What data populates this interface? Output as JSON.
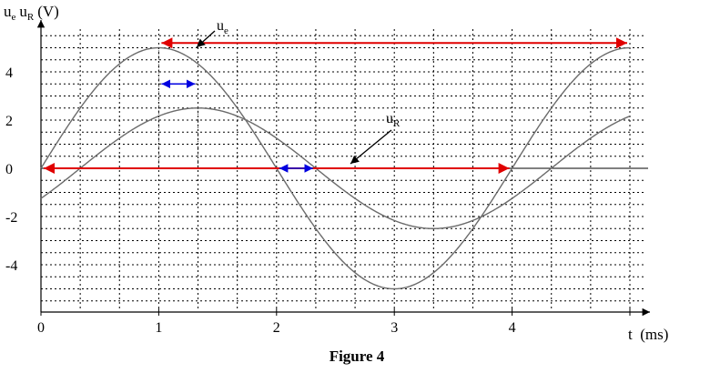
{
  "chart_data": {
    "type": "line",
    "title": "Figure 4",
    "ylabel": "uₑ uʀ (V)",
    "ylabel_parts": {
      "u1": "u",
      "s1": "e",
      "u2": "u",
      "s2": "R",
      "unit": "(V)"
    },
    "xlabel": "t  (ms)",
    "xlim": [
      0,
      5
    ],
    "ylim": [
      -6,
      5.9
    ],
    "x_ticks": [
      "0",
      "1",
      "2",
      "3",
      "4"
    ],
    "y_ticks": [
      "4",
      "2",
      "0",
      "-2",
      "-4"
    ],
    "y_tick_values": [
      4,
      2,
      0,
      -2,
      -4
    ],
    "x_tick_values": [
      0,
      1,
      2,
      3,
      4
    ],
    "grid": true,
    "series": [
      {
        "name": "uₑ",
        "label_main": "u",
        "label_sub": "e",
        "amplitude": 5,
        "period_ms": 4,
        "phase_shift_ms": 0,
        "color": "#6b6b6b"
      },
      {
        "name": "uʀ",
        "label_main": "u",
        "label_sub": "R",
        "amplitude": 2.5,
        "period_ms": 4,
        "phase_shift_ms": 0.333,
        "color": "#6b6b6b"
      }
    ],
    "annotations": {
      "period_ue_arrow": {
        "x_from": 1,
        "x_to": 5,
        "y": 5.2,
        "color": "#e00000"
      },
      "period_axis_arrow": {
        "x_from": 0,
        "x_to": 4,
        "y": 0,
        "color": "#e00000"
      },
      "shift_arrow_top": {
        "x_from": 1,
        "x_to": 1.333,
        "y": 3.5,
        "color": "#0000e0"
      },
      "shift_arrow_zero": {
        "x_from": 2,
        "x_to": 2.333,
        "y": 0,
        "color": "#0000e0"
      }
    }
  }
}
